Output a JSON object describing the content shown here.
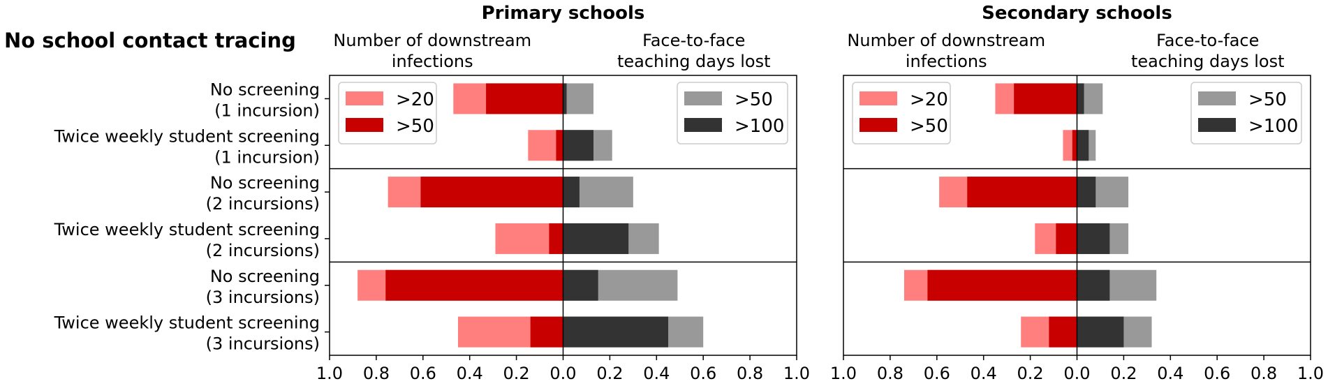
{
  "chart_data": {
    "type": "bar",
    "orientation": "horizontal-diverging",
    "title": "No school contact tracing",
    "categories": [
      "No screening\n(1 incursion)",
      "Twice weekly student screening\n(1 incursion)",
      "No screening\n(2 incursions)",
      "Twice weekly student screening\n(2 incursions)",
      "No screening\n(3 incursions)",
      "Twice weekly student screening\n(3 incursions)"
    ],
    "group_separators_after": [
      1,
      3
    ],
    "xlim": [
      -1.0,
      1.0
    ],
    "xticks": [
      -1.0,
      -0.8,
      -0.6,
      -0.4,
      -0.2,
      0.0,
      0.2,
      0.4,
      0.6,
      0.8,
      1.0
    ],
    "xtick_labels": [
      "1.0",
      "0.8",
      "0.6",
      "0.4",
      "0.2",
      "0.0",
      "0.2",
      "0.4",
      "0.6",
      "0.8",
      "1.0"
    ],
    "left_side_label": "Number of downstream\ninfections",
    "right_side_label": "Face-to-face\nteaching days lost",
    "legend_infections": [
      {
        "label": ">20",
        "color": "#ff7f7f"
      },
      {
        "label": ">50",
        "color": "#c80000"
      }
    ],
    "legend_days": [
      {
        "label": ">50",
        "color": "#999999"
      },
      {
        "label": ">100",
        "color": "#333333"
      }
    ],
    "panels": [
      {
        "title": "Primary schools",
        "series": [
          {
            "name": ">20",
            "side": "infections",
            "color": "#ff7f7f",
            "values": [
              0.47,
              0.15,
              0.75,
              0.29,
              0.88,
              0.45
            ]
          },
          {
            "name": ">50",
            "side": "infections",
            "color": "#c80000",
            "values": [
              0.33,
              0.03,
              0.61,
              0.06,
              0.76,
              0.14
            ]
          },
          {
            "name": ">50",
            "side": "days",
            "color": "#999999",
            "values": [
              0.13,
              0.21,
              0.3,
              0.41,
              0.49,
              0.6
            ]
          },
          {
            "name": ">100",
            "side": "days",
            "color": "#333333",
            "values": [
              0.015,
              0.13,
              0.07,
              0.28,
              0.15,
              0.45
            ]
          }
        ]
      },
      {
        "title": "Secondary schools",
        "series": [
          {
            "name": ">20",
            "side": "infections",
            "color": "#ff7f7f",
            "values": [
              0.35,
              0.06,
              0.59,
              0.18,
              0.74,
              0.24
            ]
          },
          {
            "name": ">50",
            "side": "infections",
            "color": "#c80000",
            "values": [
              0.27,
              0.02,
              0.47,
              0.09,
              0.64,
              0.12
            ]
          },
          {
            "name": ">50",
            "side": "days",
            "color": "#999999",
            "values": [
              0.11,
              0.08,
              0.22,
              0.22,
              0.34,
              0.32
            ]
          },
          {
            "name": ">100",
            "side": "days",
            "color": "#333333",
            "values": [
              0.03,
              0.05,
              0.08,
              0.14,
              0.14,
              0.2
            ]
          }
        ]
      }
    ]
  }
}
